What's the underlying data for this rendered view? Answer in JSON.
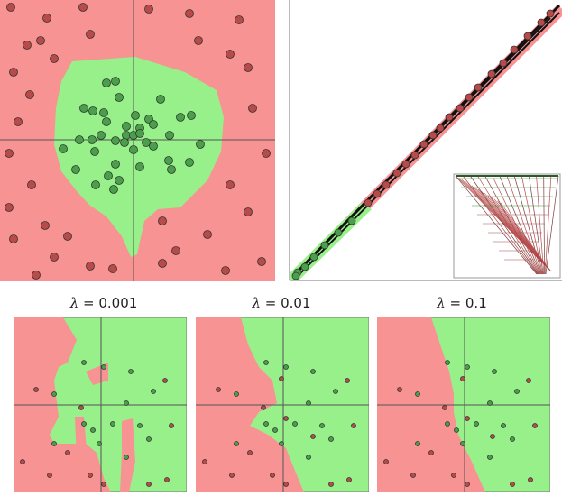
{
  "colors": {
    "red_region": "#f79393",
    "green_region": "#98f08a",
    "red_point": "#b84a4a",
    "green_point": "#4aa04a",
    "axis": "#555555",
    "line": "#111111"
  },
  "labels": [
    {
      "symbol": "λ",
      "text": "= 0.001"
    },
    {
      "symbol": "λ",
      "text": "= 0.01"
    },
    {
      "symbol": "λ",
      "text": "= 0.1"
    }
  ]
}
